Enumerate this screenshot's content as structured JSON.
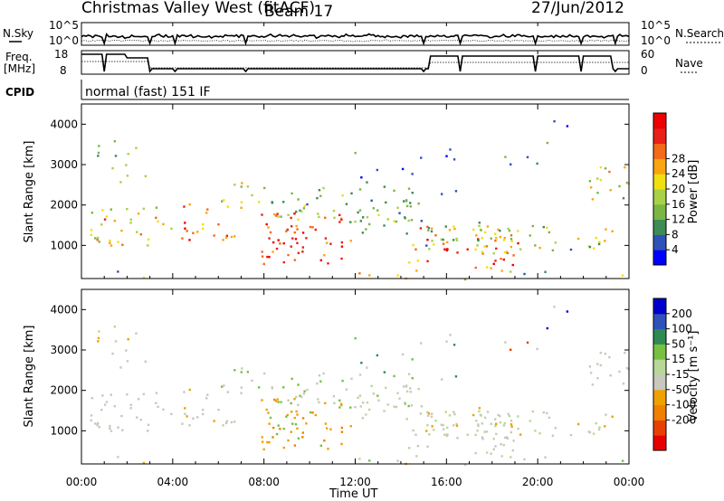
{
  "header": {
    "site": "Christmas Valley West (fitACF)",
    "beam": "Beam 17",
    "date": "27/Jun/2012"
  },
  "top_panels": {
    "nsky": {
      "label": "N.Sky",
      "ticks": [
        "10^5",
        "10^0"
      ]
    },
    "nsearch": {
      "label": "N.Search",
      "ticks": [
        "10^5",
        "10^0"
      ]
    },
    "freq": {
      "label1": "Freq.",
      "label2": "[MHz]",
      "ticks": [
        "18",
        "8"
      ]
    },
    "nave": {
      "label": "Nave",
      "ticks": [
        "60",
        "0"
      ]
    },
    "cpid": {
      "label": "CPID",
      "text": "normal (fast) 151 IF"
    }
  },
  "colors": {
    "power": [
      "#0000ff",
      "#2f52b8",
      "#3f8a55",
      "#7bb643",
      "#a8d148",
      "#f0e010",
      "#f9a511",
      "#f36a18",
      "#e82018",
      "#ee0000"
    ],
    "velocity": [
      "#0000cc",
      "#2f52b8",
      "#2e8a52",
      "#78c040",
      "#b8d89a",
      "#c8c8bc",
      "#f0a000",
      "#f08000",
      "#e84000",
      "#e80000"
    ]
  },
  "chart_data": [
    {
      "type": "heatmap",
      "xlabel": "",
      "ylabel": "Slant Range [km]",
      "y_ticks": [
        "1000",
        "2000",
        "3000",
        "4000"
      ],
      "ylim": [
        180,
        4500
      ],
      "colorbar": {
        "label": "Power [dB]",
        "ticks": [
          "4",
          "8",
          "12",
          "16",
          "20",
          "24",
          "28"
        ],
        "range": [
          0,
          30
        ]
      }
    },
    {
      "type": "heatmap",
      "xlabel": "Time UT",
      "x_ticks": [
        "00:00",
        "04:00",
        "08:00",
        "12:00",
        "16:00",
        "20:00",
        "00:00"
      ],
      "xlim": [
        0,
        24
      ],
      "ylabel": "Slant Range [km]",
      "y_ticks": [
        "1000",
        "2000",
        "3000",
        "4000"
      ],
      "ylim": [
        180,
        4500
      ],
      "colorbar": {
        "label": "Velocity [m s⁻¹]",
        "ticks": [
          "200",
          "100",
          "50",
          "15",
          "-15",
          "-50",
          "-100",
          "-200"
        ]
      }
    }
  ]
}
